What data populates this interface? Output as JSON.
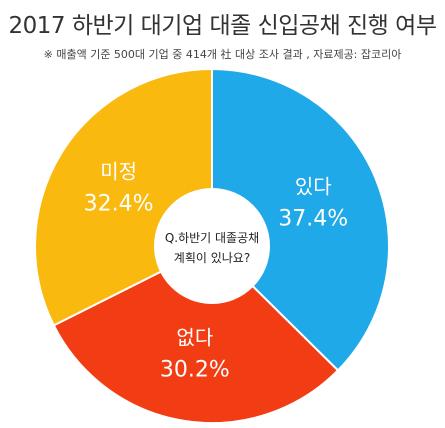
{
  "header": {
    "title": "2017 하반기 대기업 대졸 신입공채 진행 여부",
    "subtitle": "※ 매출액 기준 500대 기업 중 414개 社 대상 조사 결과 , 자료제공: 잡코리아"
  },
  "chart_data": {
    "type": "pie",
    "title": "2017 하반기 대기업 대졸 신입공채 진행 여부",
    "center_text": [
      "Q.하반기 대졸공채",
      "계획이 있나요?"
    ],
    "slices": [
      {
        "label": "있다",
        "value": 37.4,
        "display": "37.4%",
        "color": "#1fa9e8"
      },
      {
        "label": "없다",
        "value": 30.2,
        "display": "30.2%",
        "color": "#f23c14"
      },
      {
        "label": "미정",
        "value": 32.4,
        "display": "32.4%",
        "color": "#fab90f"
      }
    ]
  }
}
